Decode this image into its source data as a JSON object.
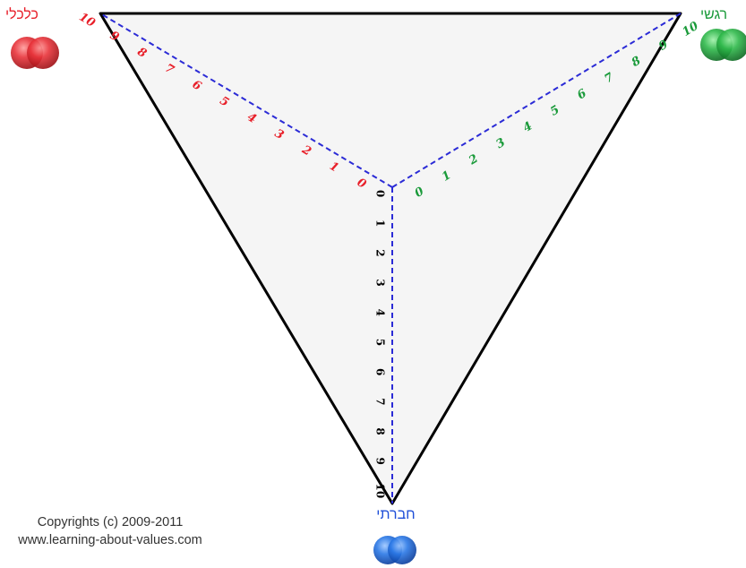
{
  "labels": {
    "economic": "כלכלי",
    "emotional": "רגשי",
    "social": "חברתי"
  },
  "colors": {
    "economic": "#e8202a",
    "emotional": "#1a9a3a",
    "social": "#1f4fd8",
    "triangle_fill": "#f5f5f5",
    "triangle_stroke": "#000000",
    "axis_dash": "#2b2bd6",
    "scale_vertical": "#000000"
  },
  "scale": {
    "min": 0,
    "max": 10,
    "ticks": [
      "0",
      "1",
      "2",
      "3",
      "4",
      "5",
      "6",
      "7",
      "8",
      "9",
      "10"
    ]
  },
  "copyright": {
    "line1": "Copyrights (c)  2009-2011",
    "line2": "www.learning-about-values.com"
  },
  "icons": {
    "economic": "red-double-circle-icon",
    "emotional": "green-double-circle-icon",
    "social": "blue-double-circle-icon"
  }
}
